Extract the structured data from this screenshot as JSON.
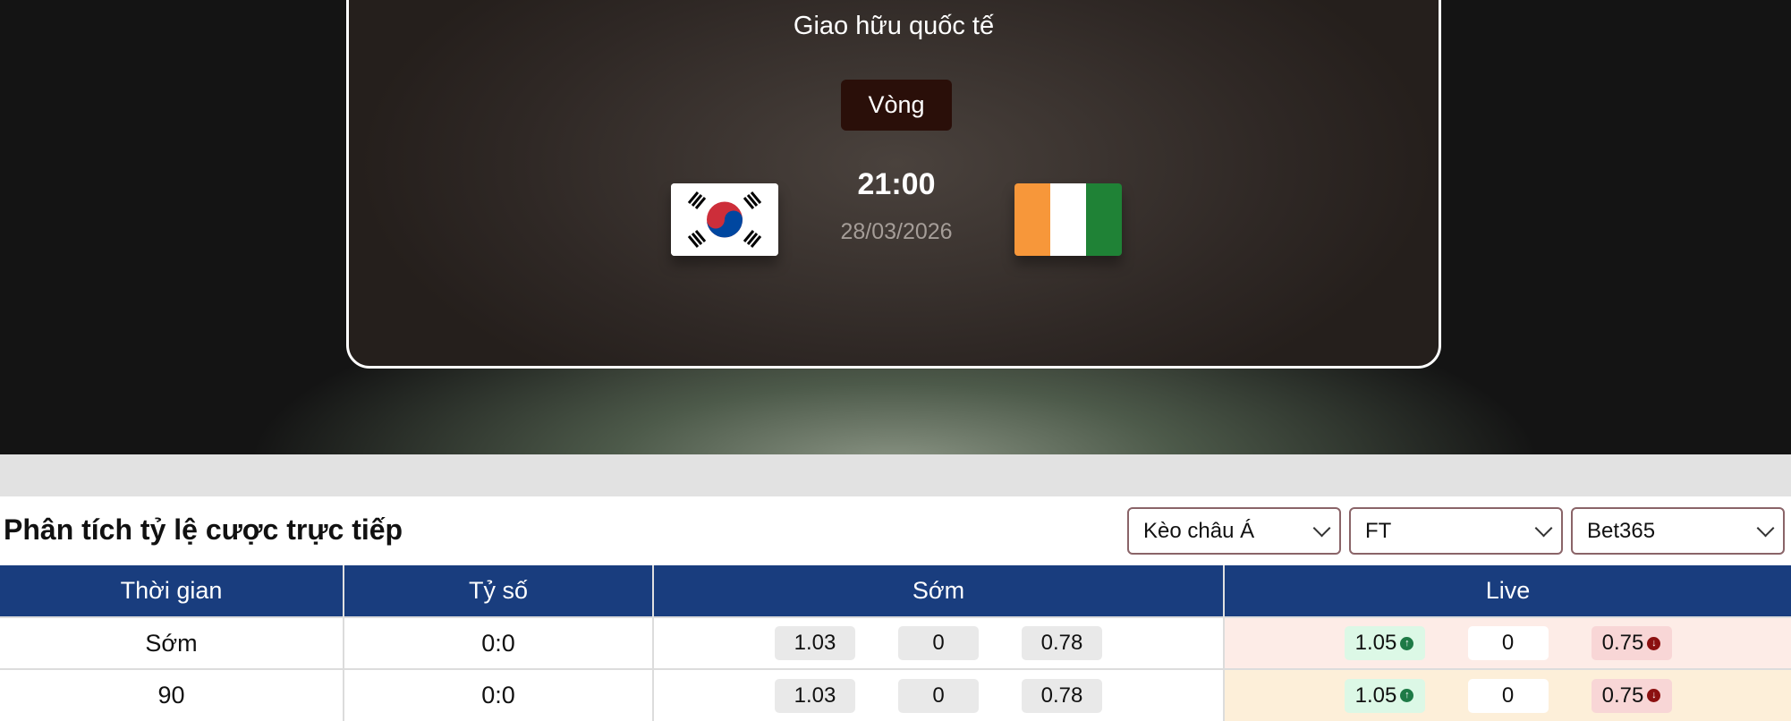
{
  "match": {
    "league": "Giao hữu quốc tế",
    "round": "Vòng",
    "time": "21:00",
    "date": "28/03/2026",
    "home_flag": "south-korea-flag",
    "away_flag": "ivory-coast-flag"
  },
  "odds": {
    "title": "Phân tích tỷ lệ cược trực tiếp",
    "selects": [
      "Kèo châu Á",
      "FT",
      "Bet365"
    ],
    "headers": [
      "Thời gian",
      "Tỷ số",
      "Sớm",
      "Live"
    ],
    "rows": [
      {
        "time": "Sớm",
        "score": "0:0",
        "early": [
          "1.03",
          "0",
          "0.78"
        ],
        "live": [
          "1.05",
          "0",
          "0.75"
        ]
      },
      {
        "time": "90",
        "score": "0:0",
        "early": [
          "1.03",
          "0",
          "0.78"
        ],
        "live": [
          "1.05",
          "0",
          "0.75"
        ]
      }
    ],
    "colors": {
      "header": "#193d7e",
      "up": "#1e7a46",
      "down": "#8b1010"
    }
  }
}
